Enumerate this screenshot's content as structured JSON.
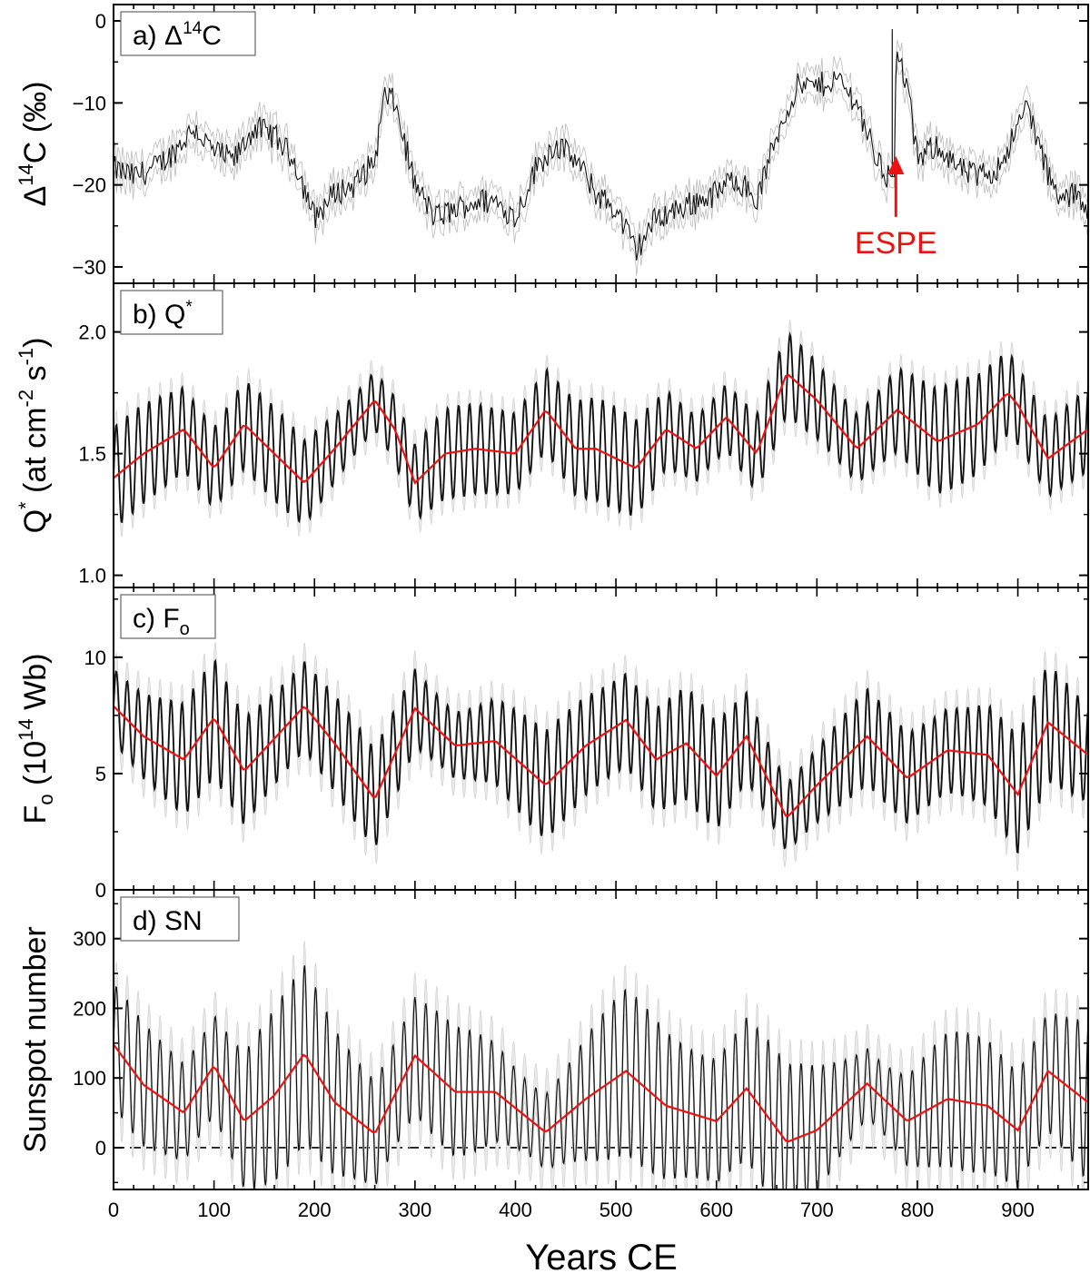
{
  "figure": {
    "x_axis_title": "Years CE",
    "x_ticks": [
      0,
      100,
      200,
      300,
      400,
      500,
      600,
      700,
      800,
      900
    ],
    "xlim": [
      0,
      970
    ]
  },
  "panels": [
    {
      "id": "a",
      "label": "a) Δ",
      "label_sup": "14",
      "label_end": "C",
      "ylabel": {
        "pre": "Δ",
        "sup": "14",
        "post": "C (‰)"
      },
      "ylim": [
        -32,
        2
      ],
      "yticks": [
        0,
        -10,
        -20,
        -30
      ],
      "ytick_labels": [
        "0",
        "−10",
        "−20",
        "−30"
      ],
      "annotation": {
        "text": "ESPE",
        "x": 775,
        "y_tip": -16.5,
        "y_text": -27,
        "color": "#ee1111"
      }
    },
    {
      "id": "b",
      "label": "b) Q",
      "label_sup": "*",
      "ylabel": {
        "pre": "Q",
        "sup1": "*",
        "mid": " (at cm",
        "sup2": "-2",
        "mid2": " s",
        "sup3": "-1",
        "post": ")"
      },
      "ylim": [
        0.95,
        2.2
      ],
      "yticks": [
        1.0,
        1.5,
        2.0
      ],
      "ytick_labels": [
        "1.0",
        "1.5",
        "2.0"
      ]
    },
    {
      "id": "c",
      "label": "c) F",
      "label_sub": "o",
      "ylabel": {
        "pre": "F",
        "sub": "o",
        "mid": " (10",
        "sup": "14",
        "post": " Wb)"
      },
      "ylim": [
        0,
        13
      ],
      "yticks": [
        0,
        5,
        10
      ],
      "ytick_labels": [
        "0",
        "5",
        "10"
      ]
    },
    {
      "id": "d",
      "label": "d) SN",
      "ylabel": {
        "pre": "Sunspot number"
      },
      "ylim": [
        -60,
        370
      ],
      "yticks": [
        0,
        100,
        200,
        300
      ],
      "ytick_labels": [
        "0",
        "100",
        "200",
        "300"
      ]
    }
  ],
  "chart_data": [
    {
      "type": "line",
      "title": "a) Δ14C",
      "ylabel": "Δ14C (‰)",
      "xlabel": "",
      "xlim": [
        0,
        970
      ],
      "ylim": [
        -32,
        2
      ],
      "series": [
        {
          "color": "#000000",
          "x": [
            0,
            20,
            40,
            60,
            80,
            100,
            120,
            140,
            160,
            180,
            200,
            220,
            240,
            260,
            270,
            280,
            300,
            320,
            340,
            360,
            380,
            400,
            420,
            440,
            460,
            480,
            500,
            520,
            540,
            560,
            580,
            600,
            620,
            640,
            660,
            680,
            700,
            720,
            740,
            760,
            770,
            775,
            780,
            790,
            800,
            820,
            840,
            860,
            880,
            900,
            910,
            920,
            940,
            960,
            970
          ],
          "y": [
            -18,
            -19,
            -18,
            -16,
            -13,
            -16,
            -17,
            -13,
            -14,
            -17,
            -24,
            -21,
            -20,
            -17,
            -9,
            -10,
            -20,
            -24,
            -23,
            -22,
            -22,
            -24,
            -18,
            -15,
            -17,
            -21,
            -23,
            -28,
            -24,
            -23,
            -22,
            -21,
            -19,
            -22,
            -14,
            -8,
            -8,
            -7,
            -10,
            -17,
            -19,
            -16,
            -4,
            -8,
            -17,
            -15,
            -18,
            -19,
            -18,
            -13,
            -10,
            -15,
            -22,
            -21,
            -23
          ]
        }
      ]
    },
    {
      "type": "line",
      "title": "b) Q*",
      "ylabel": "Q* (at cm-2 s-1)",
      "xlabel": "",
      "xlim": [
        0,
        970
      ],
      "ylim": [
        0.95,
        2.2
      ],
      "series": [
        {
          "color": "#ee1111",
          "x": [
            0,
            30,
            70,
            100,
            130,
            160,
            190,
            220,
            260,
            280,
            300,
            330,
            360,
            400,
            430,
            460,
            480,
            520,
            550,
            580,
            610,
            640,
            670,
            700,
            740,
            780,
            820,
            860,
            890,
            900,
            930,
            970
          ],
          "y": [
            1.4,
            1.5,
            1.6,
            1.44,
            1.62,
            1.5,
            1.38,
            1.52,
            1.72,
            1.6,
            1.38,
            1.5,
            1.52,
            1.5,
            1.68,
            1.52,
            1.52,
            1.44,
            1.6,
            1.52,
            1.65,
            1.5,
            1.83,
            1.72,
            1.52,
            1.68,
            1.55,
            1.62,
            1.75,
            1.7,
            1.48,
            1.6
          ]
        }
      ]
    },
    {
      "type": "line",
      "title": "c) Fo",
      "ylabel": "Fo (10^14 Wb)",
      "xlabel": "",
      "xlim": [
        0,
        970
      ],
      "ylim": [
        0,
        13
      ],
      "series": [
        {
          "color": "#ee1111",
          "x": [
            0,
            30,
            70,
            100,
            130,
            160,
            190,
            220,
            260,
            300,
            340,
            380,
            430,
            470,
            510,
            540,
            570,
            600,
            630,
            670,
            700,
            750,
            790,
            830,
            870,
            900,
            930,
            970
          ],
          "y": [
            7.9,
            6.6,
            5.6,
            7.4,
            5.1,
            6.5,
            7.9,
            6.3,
            3.9,
            7.8,
            6.2,
            6.4,
            4.5,
            6.2,
            7.3,
            5.6,
            6.3,
            4.9,
            6.6,
            3.1,
            4.5,
            6.6,
            4.8,
            6.0,
            5.8,
            4.1,
            7.2,
            5.8
          ]
        }
      ]
    },
    {
      "type": "line",
      "title": "d) SN",
      "ylabel": "Sunspot number",
      "xlabel": "Years CE",
      "xlim": [
        0,
        970
      ],
      "ylim": [
        -60,
        370
      ],
      "series": [
        {
          "color": "#ee1111",
          "x": [
            0,
            30,
            70,
            100,
            130,
            160,
            190,
            220,
            260,
            300,
            340,
            380,
            430,
            470,
            510,
            550,
            600,
            630,
            670,
            700,
            750,
            790,
            830,
            870,
            900,
            930,
            970
          ],
          "y": [
            148,
            90,
            50,
            118,
            38,
            75,
            135,
            65,
            20,
            132,
            80,
            80,
            22,
            70,
            110,
            60,
            38,
            85,
            8,
            25,
            92,
            38,
            70,
            60,
            25,
            110,
            65
          ]
        }
      ]
    }
  ]
}
